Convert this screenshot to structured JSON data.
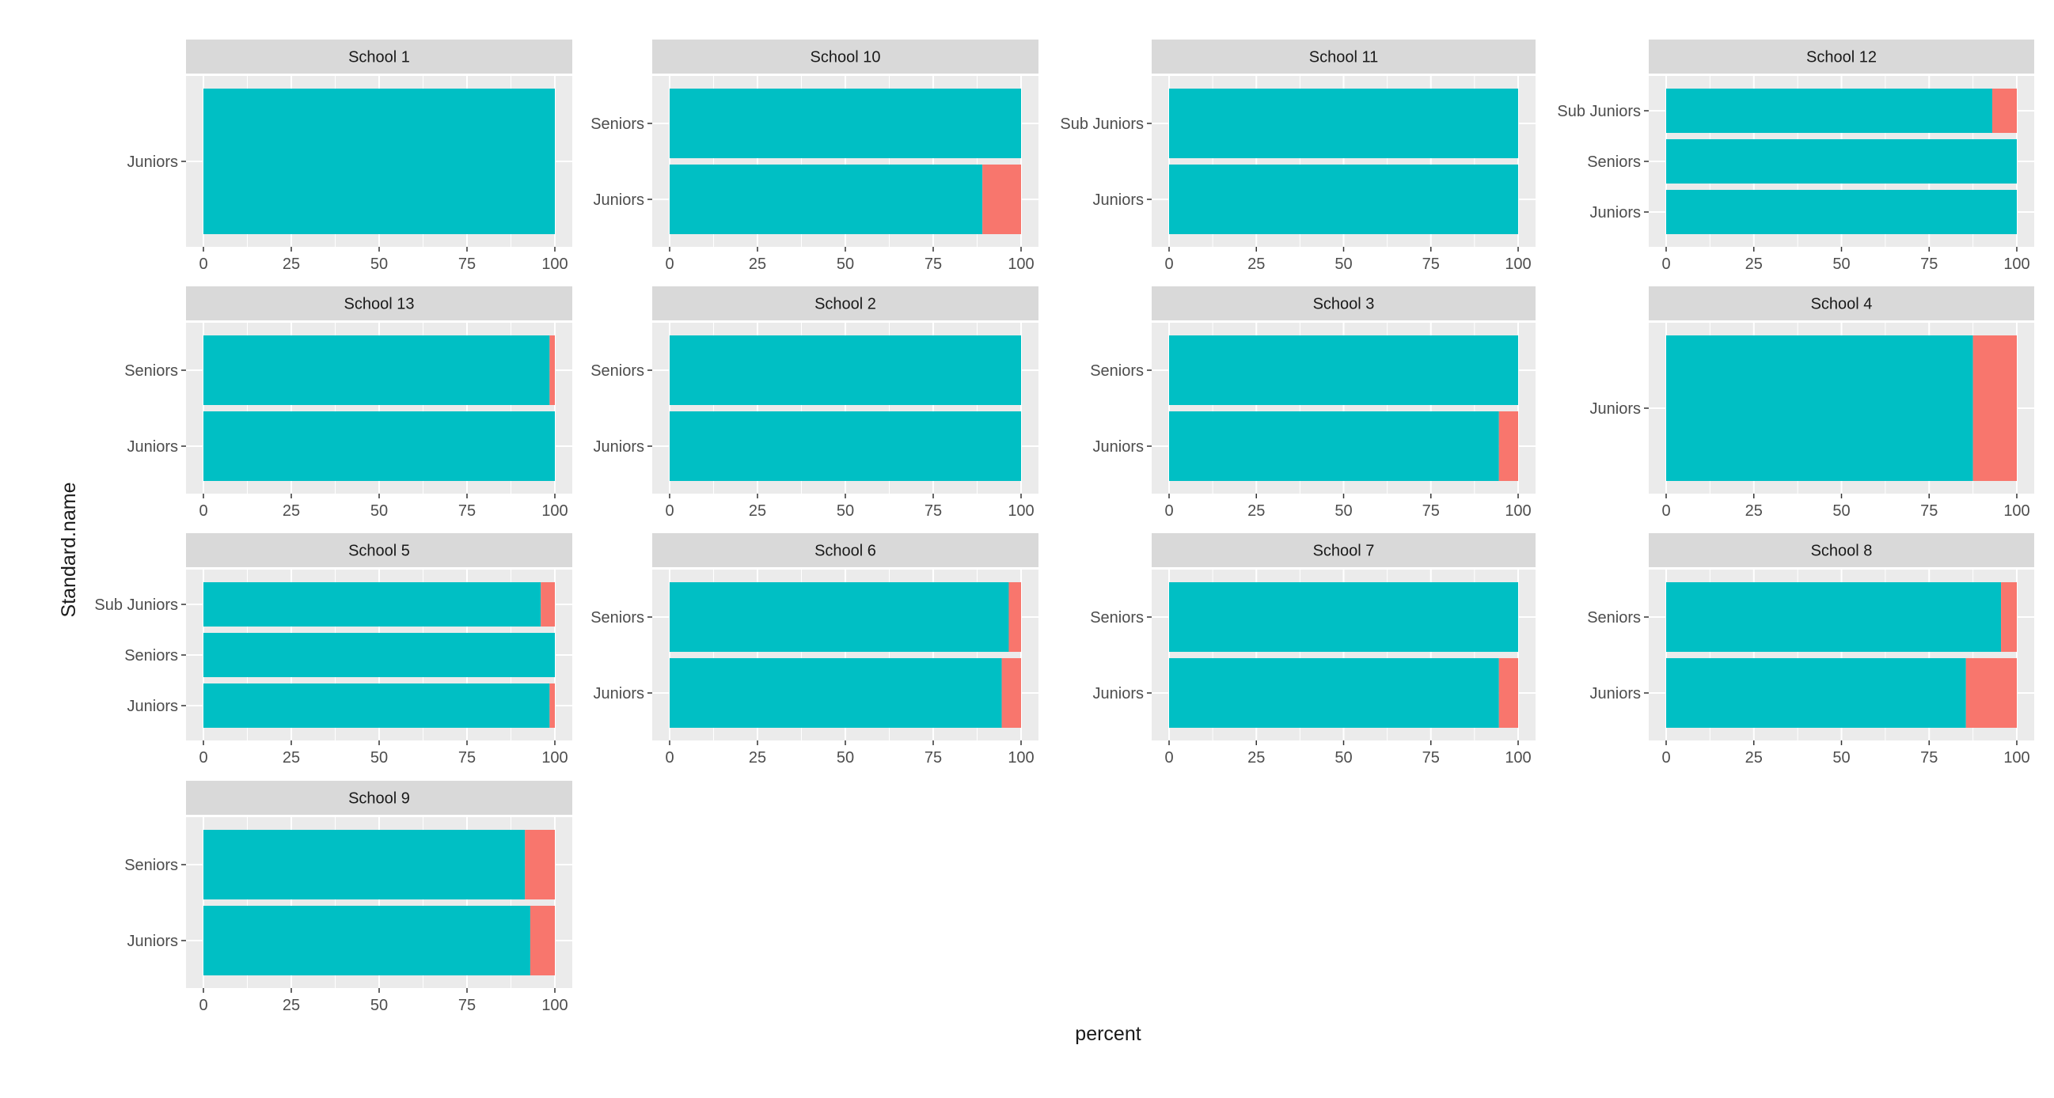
{
  "chart_data": {
    "type": "bar",
    "orientation": "horizontal",
    "stacked": true,
    "xlabel": "percent",
    "ylabel": "Standard.name",
    "xlim": [
      0,
      100
    ],
    "x_ticks": [
      "0",
      "25",
      "50",
      "75",
      "100"
    ],
    "grid": true,
    "legend": "none",
    "colors": {
      "main": "#00BFC4",
      "remainder": "#F8766D",
      "panel_bg": "#EBEBEB",
      "strip_bg": "#D9D9D9",
      "grid": "#FFFFFF",
      "text": "#4D4D4D"
    },
    "panels": [
      {
        "title": "School 1",
        "categories": [
          "Juniors"
        ],
        "values": [
          100
        ]
      },
      {
        "title": "School 10",
        "categories": [
          "Seniors",
          "Juniors"
        ],
        "values": [
          100,
          89
        ]
      },
      {
        "title": "School 11",
        "categories": [
          "Sub Juniors",
          "Juniors"
        ],
        "values": [
          100,
          100
        ]
      },
      {
        "title": "School 12",
        "categories": [
          "Sub Juniors",
          "Seniors",
          "Juniors"
        ],
        "values": [
          93,
          100,
          100
        ]
      },
      {
        "title": "School 13",
        "categories": [
          "Seniors",
          "Juniors"
        ],
        "values": [
          98.5,
          100
        ]
      },
      {
        "title": "School 2",
        "categories": [
          "Seniors",
          "Juniors"
        ],
        "values": [
          100,
          100
        ]
      },
      {
        "title": "School 3",
        "categories": [
          "Seniors",
          "Juniors"
        ],
        "values": [
          100,
          94.5
        ]
      },
      {
        "title": "School 4",
        "categories": [
          "Juniors"
        ],
        "values": [
          87.5
        ]
      },
      {
        "title": "School 5",
        "categories": [
          "Sub Juniors",
          "Seniors",
          "Juniors"
        ],
        "values": [
          96,
          100,
          98.5
        ]
      },
      {
        "title": "School 6",
        "categories": [
          "Seniors",
          "Juniors"
        ],
        "values": [
          96.5,
          94.5
        ]
      },
      {
        "title": "School 7",
        "categories": [
          "Seniors",
          "Juniors"
        ],
        "values": [
          100,
          94.5
        ]
      },
      {
        "title": "School 8",
        "categories": [
          "Seniors",
          "Juniors"
        ],
        "values": [
          95.5,
          85.5
        ]
      },
      {
        "title": "School 9",
        "categories": [
          "Seniors",
          "Juniors"
        ],
        "values": [
          91.5,
          93
        ]
      }
    ]
  }
}
